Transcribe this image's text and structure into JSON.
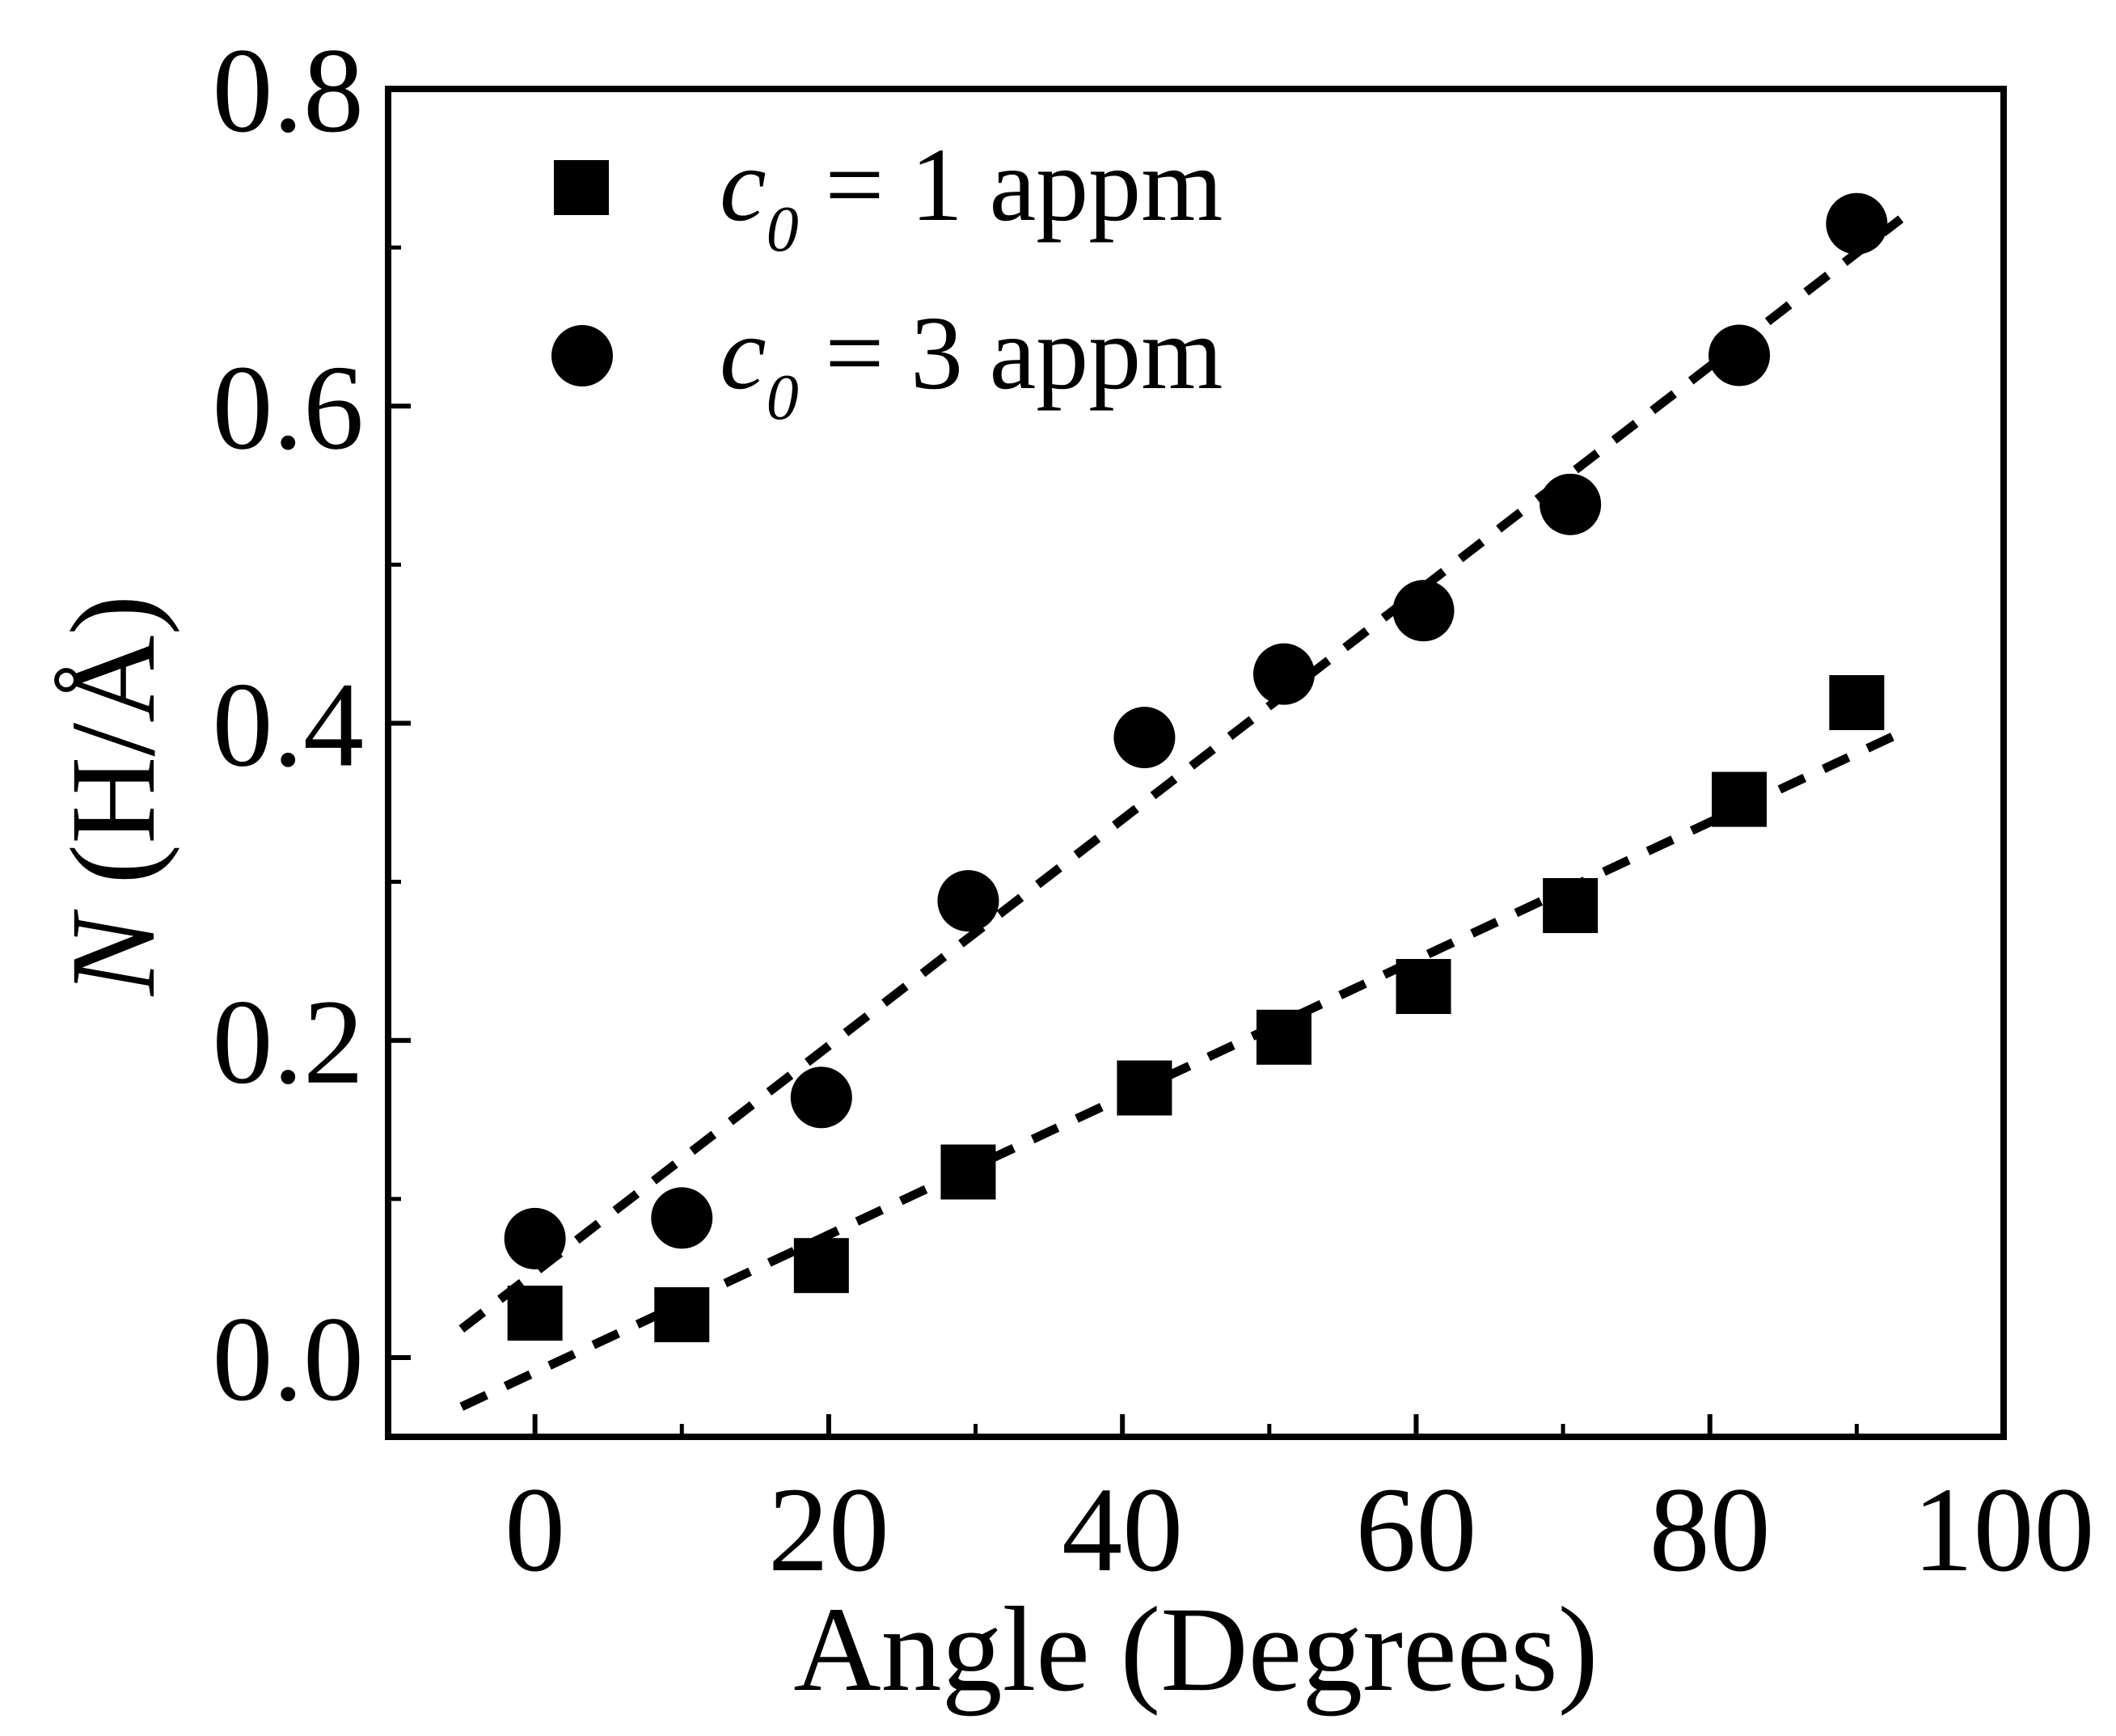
{
  "chart_data": {
    "type": "scatter",
    "title": "",
    "xlabel": "Angle (Degrees)",
    "ylabel": {
      "symbol": "N",
      "unit": " (H/Å)"
    },
    "xlim": [
      -10,
      100
    ],
    "ylim": [
      -0.05,
      0.8
    ],
    "x_major_ticks": [
      0,
      20,
      40,
      60,
      80,
      100
    ],
    "x_minor_ticks": [
      10,
      30,
      50,
      70,
      90
    ],
    "y_major_ticks": [
      0.0,
      0.2,
      0.4,
      0.6,
      0.8
    ],
    "y_minor_ticks": [
      0.1,
      0.3,
      0.5,
      0.7
    ],
    "x_tick_labels": [
      "0",
      "20",
      "40",
      "60",
      "80",
      "100"
    ],
    "y_tick_labels": [
      "0.0",
      "0.2",
      "0.4",
      "0.6",
      "0.8"
    ],
    "grid": false,
    "legend_position": "top-left",
    "series": [
      {
        "name": "c0 = 1 appm",
        "legend": {
          "symbol": "c",
          "subscript": "0",
          "text": " = 1 appm"
        },
        "marker": "square",
        "color": "#000000",
        "x": [
          0,
          10,
          19.5,
          29.5,
          41.5,
          51,
          60.5,
          70.5,
          82,
          90
        ],
        "y": [
          0.028,
          0.027,
          0.058,
          0.117,
          0.17,
          0.202,
          0.234,
          0.285,
          0.352,
          0.413
        ],
        "fit": {
          "style": "dashed",
          "x_start": -5,
          "x_end": 93,
          "y_start": -0.031,
          "y_end": 0.394
        }
      },
      {
        "name": "c0 = 3 appm",
        "legend": {
          "symbol": "c",
          "subscript": "0",
          "text": " = 3 appm"
        },
        "marker": "circle",
        "color": "#000000",
        "x": [
          0,
          10,
          19.5,
          29.5,
          41.5,
          51,
          60.5,
          70.5,
          82,
          90
        ],
        "y": [
          0.075,
          0.088,
          0.164,
          0.288,
          0.391,
          0.431,
          0.471,
          0.538,
          0.632,
          0.715
        ],
        "fit": {
          "style": "dashed",
          "x_start": -5,
          "x_end": 93,
          "y_start": 0.018,
          "y_end": 0.718
        }
      }
    ]
  }
}
